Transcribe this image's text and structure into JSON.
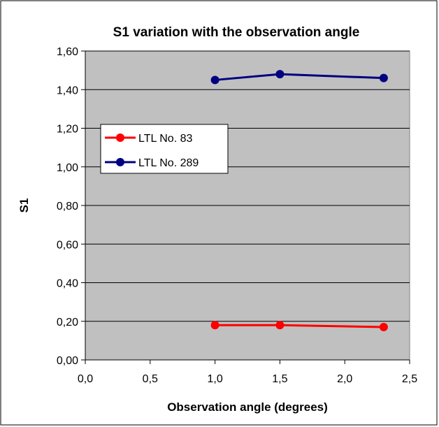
{
  "chart_data": {
    "type": "line",
    "title": "S1 variation with the observation angle",
    "xlabel": "Observation angle (degrees)",
    "ylabel": "S1",
    "xlim": [
      0,
      2.5
    ],
    "ylim": [
      0,
      1.6
    ],
    "x_ticks": [
      "0,0",
      "0,5",
      "1,0",
      "1,5",
      "2,0",
      "2,5"
    ],
    "y_ticks": [
      "0,00",
      "0,20",
      "0,40",
      "0,60",
      "0,80",
      "1,00",
      "1,20",
      "1,40",
      "1,60"
    ],
    "grid": "horizontal",
    "plot_background": "#c0c0c0",
    "legend_position": "left",
    "series": [
      {
        "name": "LTL No. 83",
        "color": "#ff0000",
        "x": [
          1.0,
          1.5,
          2.3
        ],
        "y": [
          0.18,
          0.18,
          0.17
        ]
      },
      {
        "name": "LTL No. 289",
        "color": "#000080",
        "x": [
          1.0,
          1.5,
          2.3
        ],
        "y": [
          1.45,
          1.48,
          1.46
        ]
      }
    ]
  }
}
